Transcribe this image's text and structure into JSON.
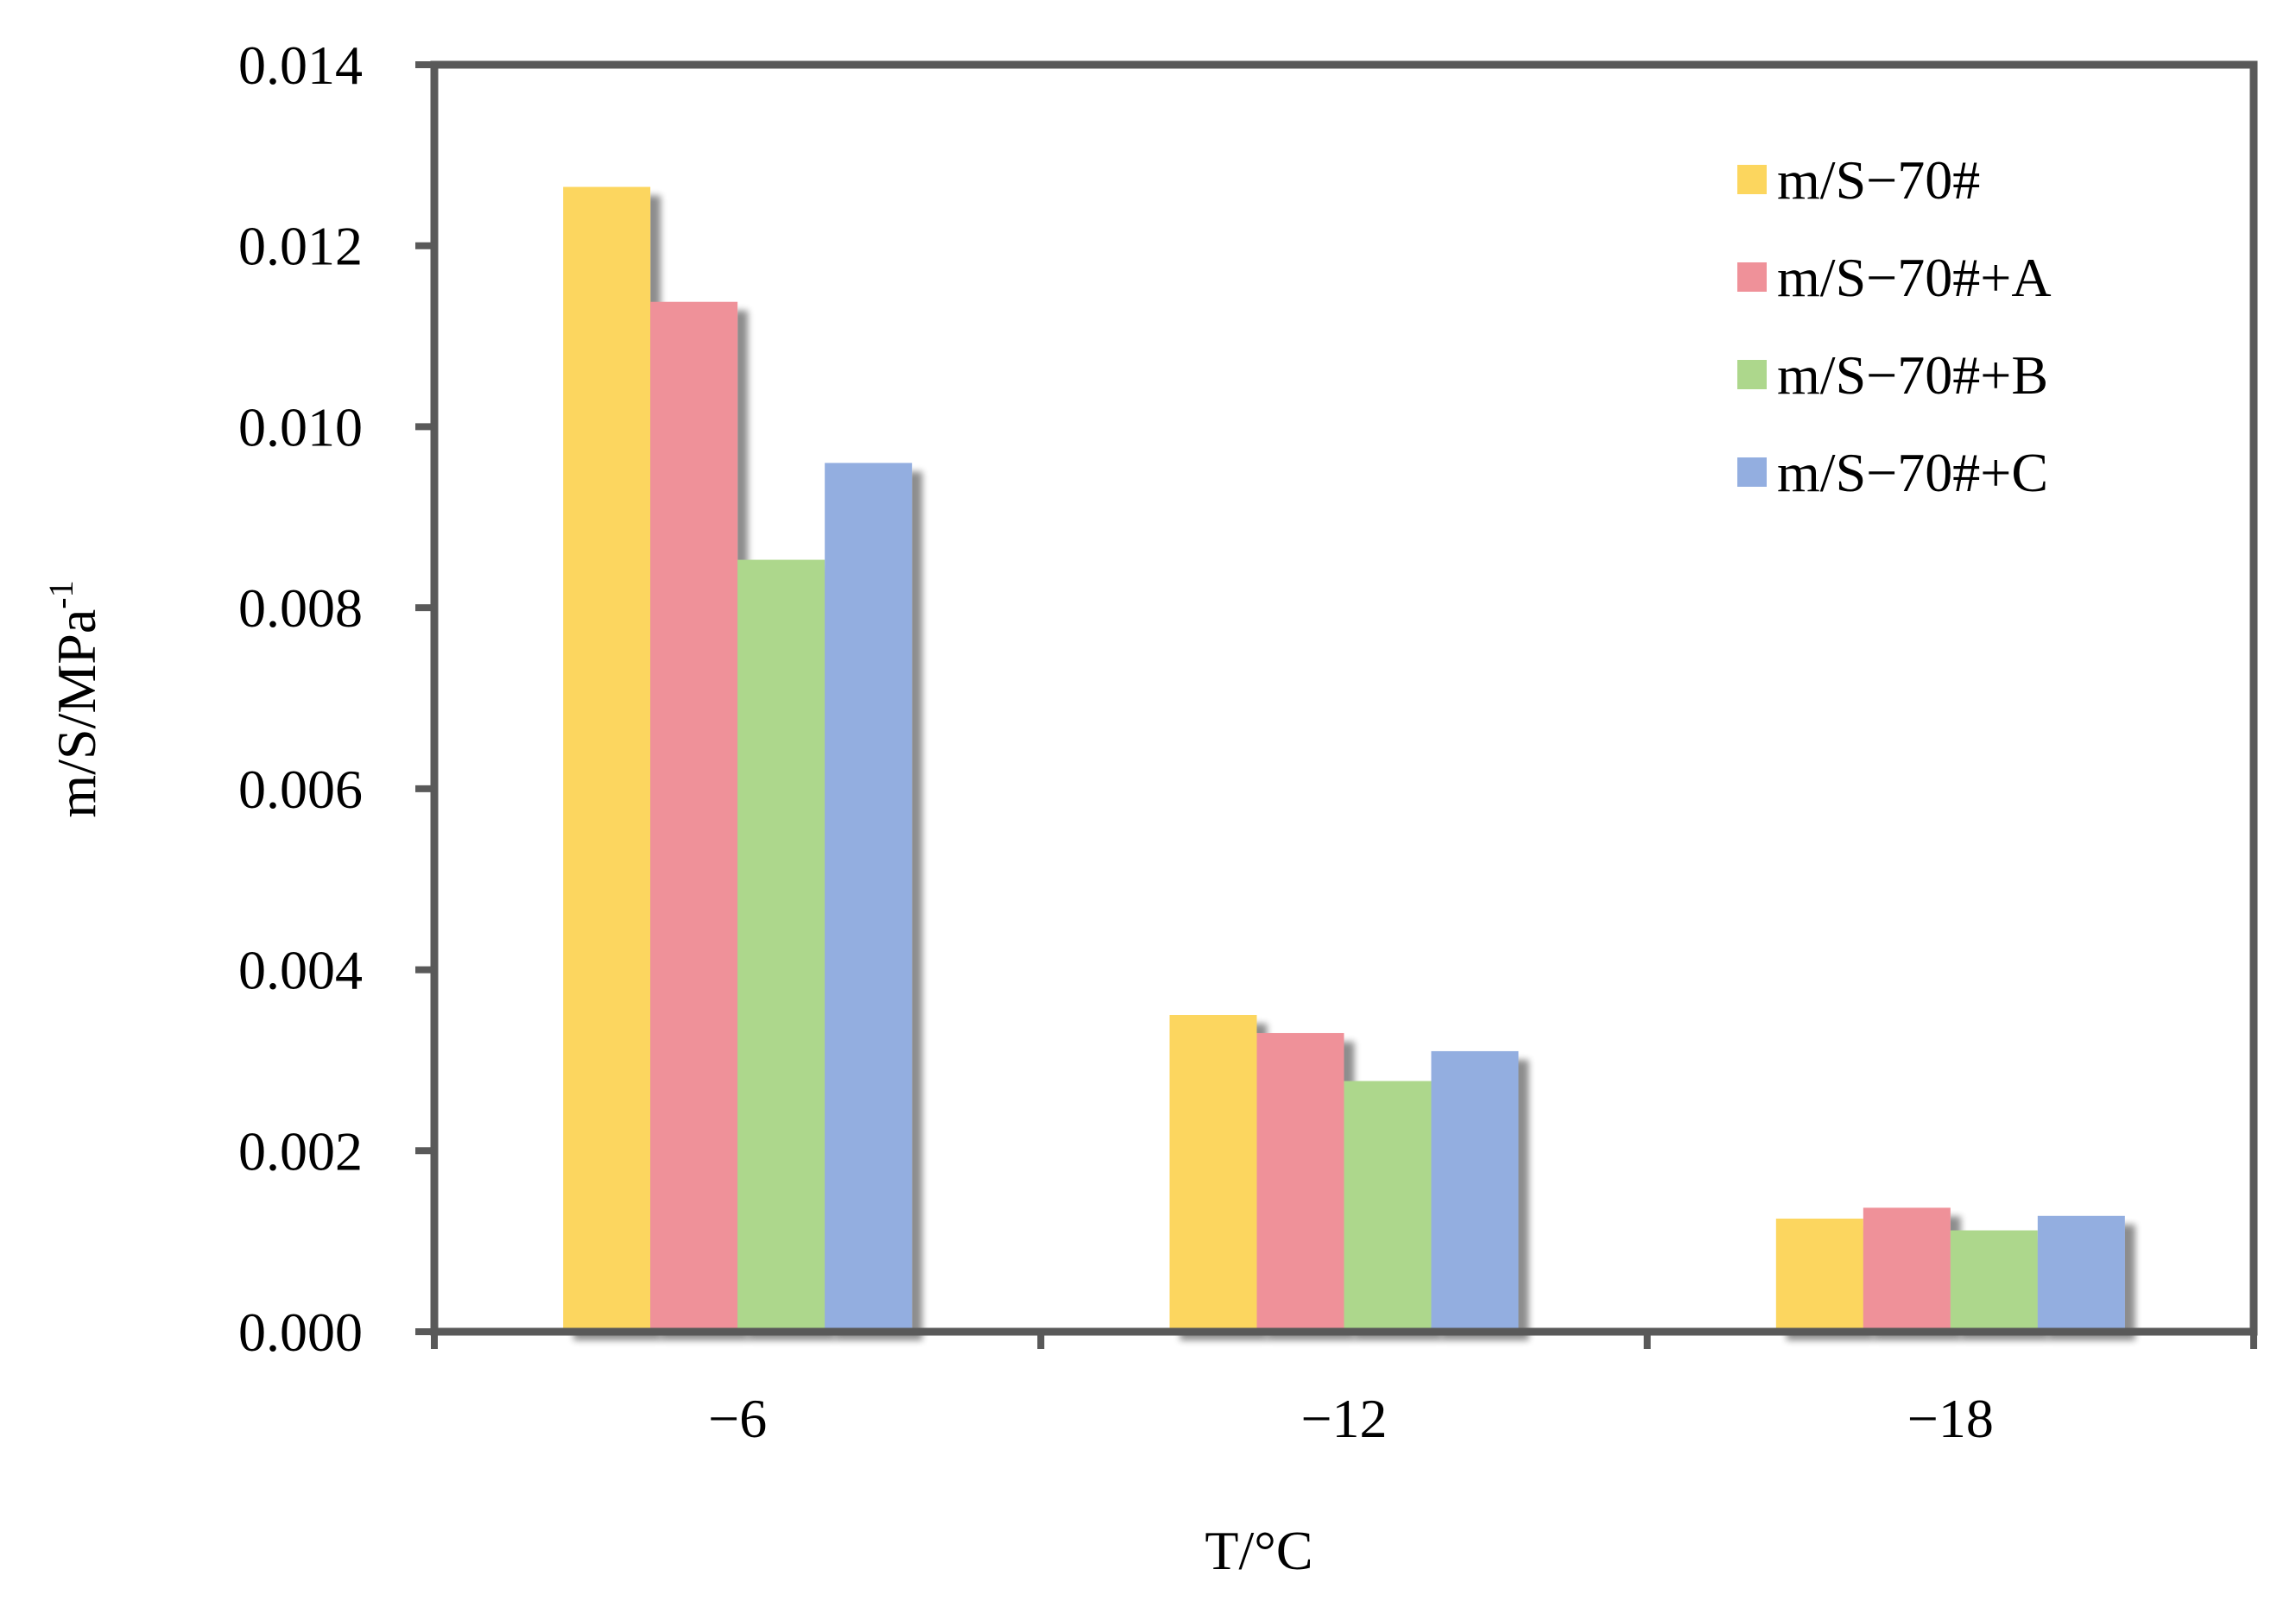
{
  "chart_data": {
    "type": "bar",
    "categories": [
      "−6",
      "−12",
      "−18"
    ],
    "series": [
      {
        "name": "m/S−70#",
        "color": "#FCD65E",
        "values": [
          0.01265,
          0.0035,
          0.00125
        ]
      },
      {
        "name": "m/S−70#+A",
        "color": "#EF9199",
        "values": [
          0.01138,
          0.0033,
          0.00137
        ]
      },
      {
        "name": "m/S−70#+B",
        "color": "#ADD78C",
        "values": [
          0.00853,
          0.00277,
          0.00112
        ]
      },
      {
        "name": "m/S−70#+C",
        "color": "#93AEE0",
        "values": [
          0.0096,
          0.0031,
          0.00128
        ]
      }
    ],
    "title": "",
    "xlabel": "T/°C",
    "ylabel": "m/S/MPa",
    "ylabel_superscript": "-1",
    "ylim": [
      0,
      0.014
    ],
    "yticks": [
      "0.000",
      "0.002",
      "0.004",
      "0.006",
      "0.008",
      "0.010",
      "0.012",
      "0.014"
    ],
    "grid": false,
    "legend_position": "top-right",
    "bar_shadow": true,
    "axis_color": "#595959"
  }
}
